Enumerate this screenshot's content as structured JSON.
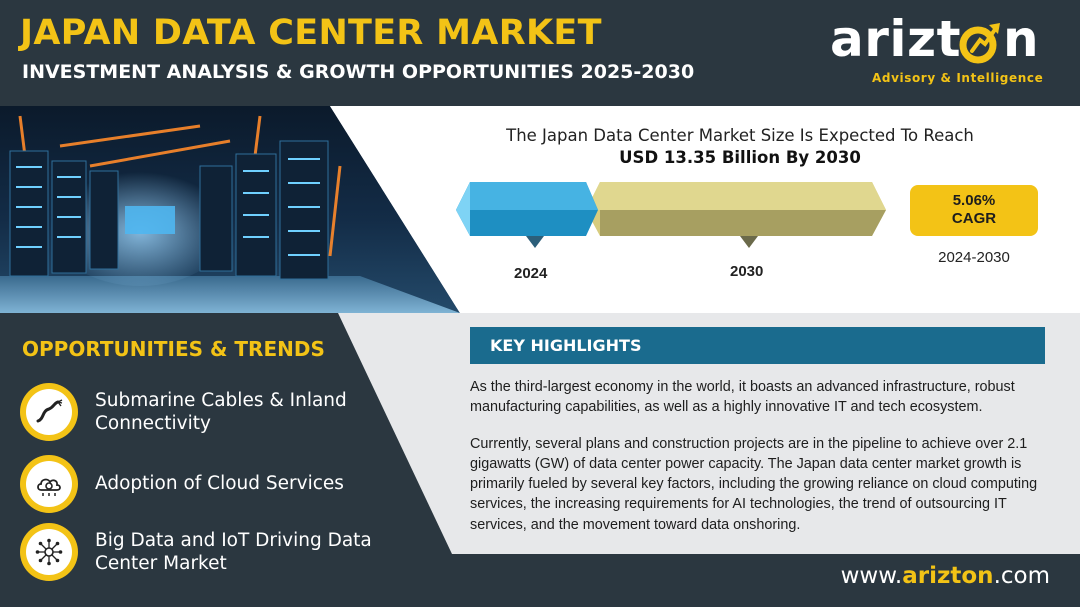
{
  "header": {
    "title": "JAPAN DATA CENTER MARKET",
    "subtitle": "INVESTMENT ANALYSIS & GROWTH OPPORTUNITIES 2025-2030"
  },
  "logo": {
    "word": "arizt",
    "word_tail": "n",
    "tagline": "Advisory & Intelligence"
  },
  "market": {
    "line1": "The Japan Data Center Market Size Is Expected To Reach",
    "line2": "USD 13.35 Billion By 2030",
    "year_start": "2024",
    "year_end": "2030",
    "cagr_value": "5.06%",
    "cagr_label": "CAGR",
    "cagr_period": "2024-2030"
  },
  "opportunities": {
    "title": "OPPORTUNITIES & TRENDS",
    "items": [
      {
        "label": "Submarine Cables & Inland Connectivity",
        "icon": "cable-icon"
      },
      {
        "label": "Adoption of Cloud Services",
        "icon": "cloud-gear-icon"
      },
      {
        "label": "Big Data and IoT Driving Data Center Market",
        "icon": "network-icon"
      }
    ]
  },
  "highlights": {
    "title": "KEY HIGHLIGHTS",
    "paragraph1": "As the third-largest economy in the world, it boasts an advanced infrastructure, robust manufacturing capabilities, as well as a highly innovative IT and tech ecosystem.",
    "paragraph2": "Currently, several plans and construction projects are in the pipeline to achieve over 2.1 gigawatts (GW) of data center power capacity. The Japan data center market growth is primarily fueled by several key factors, including the growing reliance on cloud computing services, the increasing requirements for AI technologies, the trend of outsourcing IT services, and the movement toward data onshoring."
  },
  "footer": {
    "prefix": "www.",
    "brand": "arizton",
    "suffix": ".com"
  },
  "colors": {
    "accent_yellow": "#f3c316",
    "dark_slate": "#2b3740",
    "highlight_blue": "#1a6b8e",
    "bar_blue": "#1e8fc2",
    "bar_khaki": "#d7cc7e"
  }
}
